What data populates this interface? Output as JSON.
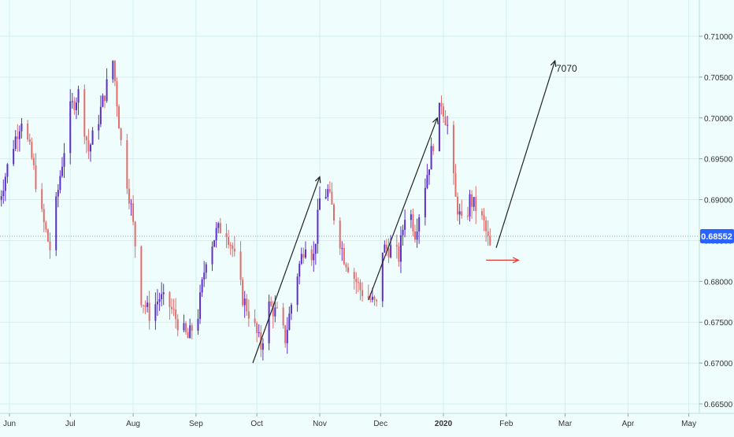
{
  "chart_data": {
    "type": "candlestick",
    "title": "",
    "x_axis": {
      "type": "date",
      "ticks": [
        "Jun",
        "Jul",
        "Aug",
        "Sep",
        "Oct",
        "Nov",
        "Dec",
        "2020",
        "Feb",
        "Mar",
        "Apr",
        "May"
      ]
    },
    "y_axis": {
      "position": "right",
      "range": [
        0.665,
        0.7125
      ],
      "ticks": [
        "0.71000",
        "0.70500",
        "0.70000",
        "0.69500",
        "0.69000",
        "0.68500",
        "0.68000",
        "0.67500",
        "0.67000",
        "0.66500"
      ]
    },
    "grid": true,
    "last_price": {
      "label": "0.68552",
      "value": 0.68552,
      "color": "#2962ff"
    },
    "colors": {
      "up": "#5b2fc9",
      "down": "#e26d6d",
      "background": "#f0fdfd",
      "grid": "#d2f0f0",
      "annotation": "#222222",
      "target_arrow": "#e53935"
    },
    "annotation_label": "7070",
    "price_path": [
      [
        "2019-05-27",
        0.69
      ],
      [
        "2019-06-02",
        0.696
      ],
      [
        "2019-06-07",
        0.7
      ],
      [
        "2019-06-12",
        0.695
      ],
      [
        "2019-06-17",
        0.688
      ],
      [
        "2019-06-21",
        0.684
      ],
      [
        "2019-06-26",
        0.693
      ],
      [
        "2019-07-01",
        0.701
      ],
      [
        "2019-07-05",
        0.703
      ],
      [
        "2019-07-10",
        0.696
      ],
      [
        "2019-07-15",
        0.7
      ],
      [
        "2019-07-19",
        0.704
      ],
      [
        "2019-07-22",
        0.707
      ],
      [
        "2019-07-26",
        0.697
      ],
      [
        "2019-07-31",
        0.689
      ],
      [
        "2019-08-05",
        0.678
      ],
      [
        "2019-08-09",
        0.676
      ],
      [
        "2019-08-14",
        0.678
      ],
      [
        "2019-08-19",
        0.677
      ],
      [
        "2019-08-23",
        0.675
      ],
      [
        "2019-08-28",
        0.673
      ],
      [
        "2019-09-02",
        0.676
      ],
      [
        "2019-09-06",
        0.683
      ],
      [
        "2019-09-11",
        0.686
      ],
      [
        "2019-09-15",
        0.687
      ],
      [
        "2019-09-19",
        0.684
      ],
      [
        "2019-09-24",
        0.678
      ],
      [
        "2019-09-29",
        0.675
      ],
      [
        "2019-10-03",
        0.672
      ],
      [
        "2019-10-07",
        0.677
      ],
      [
        "2019-10-11",
        0.676
      ],
      [
        "2019-10-15",
        0.673
      ],
      [
        "2019-10-20",
        0.68
      ],
      [
        "2019-10-25",
        0.685
      ],
      [
        "2019-10-29",
        0.683
      ],
      [
        "2019-11-01",
        0.69
      ],
      [
        "2019-11-05",
        0.691
      ],
      [
        "2019-11-09",
        0.687
      ],
      [
        "2019-11-13",
        0.683
      ],
      [
        "2019-11-17",
        0.681
      ],
      [
        "2019-11-21",
        0.679
      ],
      [
        "2019-11-25",
        0.678
      ],
      [
        "2019-11-29",
        0.677
      ],
      [
        "2019-12-02",
        0.684
      ],
      [
        "2019-12-06",
        0.684
      ],
      [
        "2019-12-10",
        0.683
      ],
      [
        "2019-12-14",
        0.69
      ],
      [
        "2019-12-18",
        0.686
      ],
      [
        "2019-12-23",
        0.692
      ],
      [
        "2019-12-27",
        0.697
      ],
      [
        "2019-12-31",
        0.702
      ],
      [
        "2020-01-03",
        0.699
      ],
      [
        "2020-01-07",
        0.69
      ],
      [
        "2020-01-11",
        0.686
      ],
      [
        "2020-01-14",
        0.69
      ],
      [
        "2020-01-17",
        0.689
      ],
      [
        "2020-01-21",
        0.687
      ],
      [
        "2020-01-24",
        0.684
      ]
    ],
    "arrows": [
      {
        "from": [
          "2019-09-29",
          0.67
        ],
        "to": [
          "2019-11-01",
          0.6928
        ]
      },
      {
        "from": [
          "2019-11-25",
          0.6777
        ],
        "to": [
          "2019-12-29",
          0.7
        ]
      },
      {
        "from": [
          "2020-01-27",
          0.6841
        ],
        "to": [
          "2020-02-25",
          0.707
        ]
      }
    ],
    "target_arrow": {
      "from": [
        "2020-01-22",
        0.6826
      ],
      "to": [
        "2020-02-07",
        0.6826
      ]
    }
  }
}
